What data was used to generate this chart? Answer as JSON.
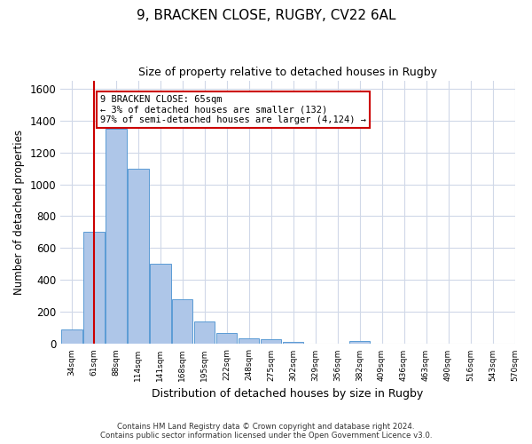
{
  "title_line1": "9, BRACKEN CLOSE, RUGBY, CV22 6AL",
  "title_line2": "Size of property relative to detached houses in Rugby",
  "xlabel": "Distribution of detached houses by size in Rugby",
  "ylabel": "Number of detached properties",
  "bar_values": [
    90,
    700,
    1350,
    1100,
    500,
    280,
    140,
    70,
    35,
    30,
    15,
    5,
    0,
    20,
    5,
    0,
    0,
    0,
    0,
    0
  ],
  "bar_labels": [
    "34sqm",
    "61sqm",
    "88sqm",
    "114sqm",
    "141sqm",
    "168sqm",
    "195sqm",
    "222sqm",
    "248sqm",
    "275sqm",
    "302sqm",
    "329sqm",
    "356sqm",
    "382sqm",
    "409sqm",
    "436sqm",
    "463sqm",
    "490sqm",
    "516sqm",
    "543sqm",
    "570sqm"
  ],
  "bar_color": "#aec6e8",
  "bar_edge_color": "#5b9bd5",
  "highlight_x_label": "61sqm",
  "highlight_color": "#cc0000",
  "ylim": [
    0,
    1650
  ],
  "yticks": [
    0,
    200,
    400,
    600,
    800,
    1000,
    1200,
    1400,
    1600
  ],
  "annotation_text": "9 BRACKEN CLOSE: 65sqm\n← 3% of detached houses are smaller (132)\n97% of semi-detached houses are larger (4,124) →",
  "annotation_box_color": "#ffffff",
  "annotation_border_color": "#cc0000",
  "footer_line1": "Contains HM Land Registry data © Crown copyright and database right 2024.",
  "footer_line2": "Contains public sector information licensed under the Open Government Licence v3.0.",
  "background_color": "#ffffff",
  "grid_color": "#d0d8e8"
}
